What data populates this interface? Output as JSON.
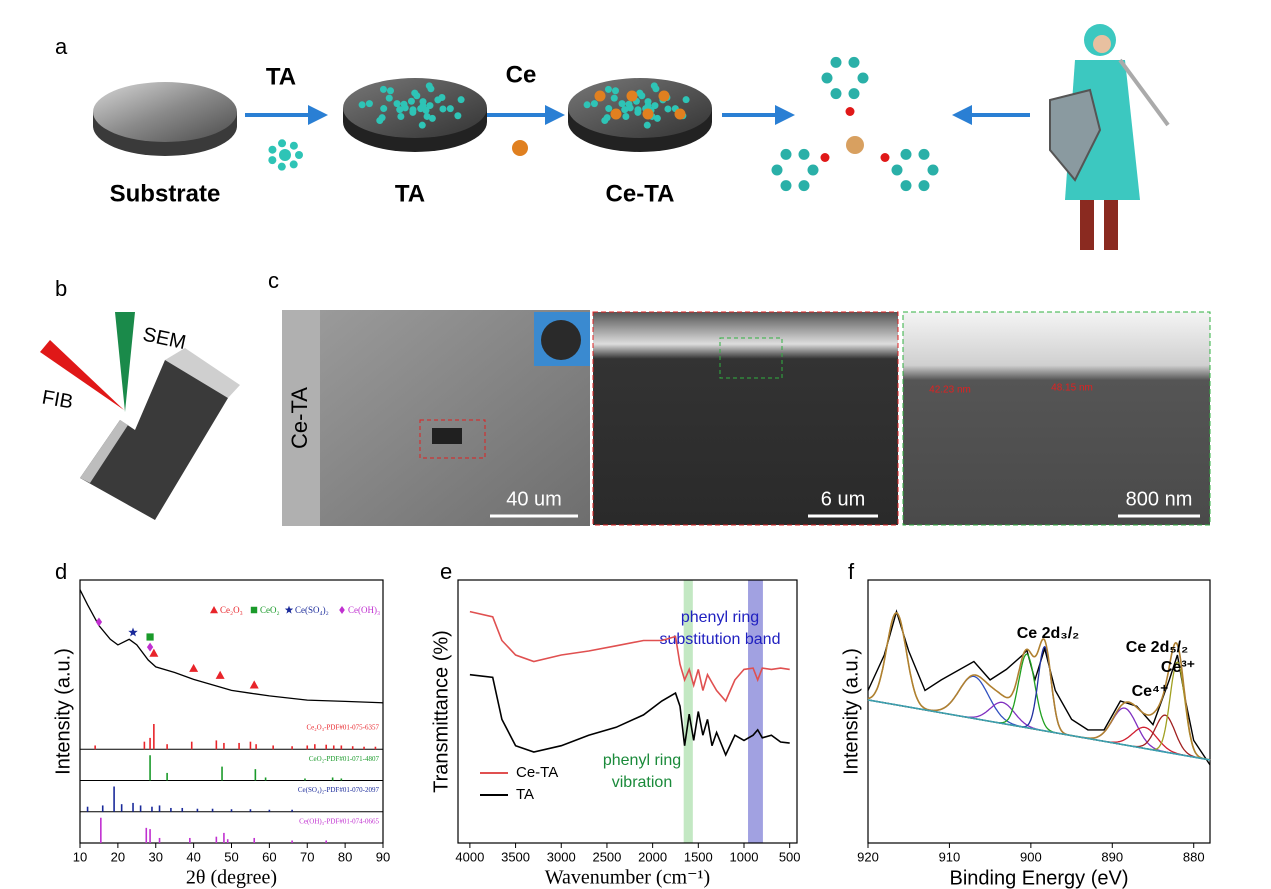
{
  "panel_labels": [
    "a",
    "b",
    "c",
    "d",
    "e",
    "f"
  ],
  "scheme": {
    "arrow_labels": [
      "TA",
      "Ce"
    ],
    "stage_labels": [
      "Substrate",
      "TA",
      "Ce-TA"
    ]
  },
  "fib_sketch": {
    "beam_labels": [
      "SEM",
      "FIB"
    ]
  },
  "sem_images": {
    "sample_label": "Ce-TA",
    "scale_bars": [
      "40 um",
      "6 um",
      "800 nm"
    ],
    "thickness_labels": [
      "42.23 nm",
      "48.15 nm"
    ]
  },
  "chart_data": [
    {
      "type": "xrd",
      "xlabel": "2θ (degree)",
      "ylabel": "Intensity (a.u.)",
      "xlim": [
        10,
        90
      ],
      "xticks": [
        10,
        20,
        30,
        40,
        50,
        60,
        70,
        80,
        90
      ],
      "ylim": [
        0,
        100
      ],
      "x": [
        10,
        12,
        15,
        18,
        20,
        23,
        25,
        28,
        30,
        35,
        40,
        45,
        50,
        55,
        60,
        65,
        70,
        80,
        90
      ],
      "values": [
        93,
        82,
        67,
        57,
        53,
        57,
        53,
        42,
        37,
        33,
        28,
        24,
        20,
        18,
        16,
        14.5,
        13,
        12,
        11
      ],
      "color": "#000000",
      "phases": [
        {
          "name": "Ce₂O₃",
          "color": "#e8242a",
          "symbol": "triangle",
          "points_x": [
            29.5,
            40,
            47,
            56
          ],
          "points_y": [
            47,
            36,
            31,
            24
          ],
          "reference": "Ce₂O₃-PDF#01-075-6357",
          "sticks_x": [
            14,
            27,
            28.5,
            29.5,
            33,
            39.5,
            46,
            48,
            52,
            55,
            56.5,
            61,
            66,
            70,
            72,
            75,
            77,
            79,
            82,
            85,
            88
          ],
          "sticks_h": [
            15,
            30,
            45,
            100,
            20,
            30,
            35,
            25,
            25,
            30,
            20,
            15,
            12,
            15,
            20,
            18,
            15,
            15,
            12,
            10,
            10
          ]
        },
        {
          "name": "CeO₂",
          "color": "#1a9a2a",
          "symbol": "square",
          "points_x": [
            28.5
          ],
          "points_y": [
            58.7
          ],
          "reference": "CeO₂-PDF#01-071-4807",
          "sticks_x": [
            28.5,
            33,
            47.5,
            56.3,
            59,
            69.4,
            76.7,
            79
          ],
          "sticks_h": [
            100,
            30,
            55,
            45,
            12,
            8,
            12,
            8
          ]
        },
        {
          "name": "Ce(SO₄)₂",
          "color": "#1a2a9a",
          "symbol": "star",
          "points_x": [
            24
          ],
          "points_y": [
            62
          ],
          "reference": "Ce(SO₄)₂-PDF#01-070-2097",
          "sticks_x": [
            12,
            16,
            19,
            21,
            24,
            26,
            29,
            31,
            34,
            37,
            41,
            45,
            50,
            55,
            60,
            66
          ],
          "sticks_h": [
            20,
            25,
            100,
            30,
            35,
            25,
            20,
            25,
            15,
            15,
            12,
            12,
            10,
            10,
            8,
            8
          ]
        },
        {
          "name": "Ce(OH)₃",
          "color": "#c030d0",
          "symbol": "diamond",
          "points_x": [
            15,
            28.5
          ],
          "points_y": [
            69.6,
            51.4
          ],
          "reference": "Ce(OH)₃-PDF#01-074-0665",
          "sticks_x": [
            15.5,
            27.5,
            28.5,
            31,
            39,
            46,
            48,
            49,
            56,
            66,
            75
          ],
          "sticks_h": [
            100,
            60,
            55,
            20,
            20,
            25,
            40,
            15,
            20,
            10,
            10
          ]
        }
      ]
    },
    {
      "type": "line",
      "xlabel": "Wavenumber (cm⁻¹)",
      "ylabel": "Transmittance (%)",
      "xlim": [
        4130,
        420
      ],
      "xticks": [
        4000,
        3500,
        3000,
        2500,
        2000,
        1500,
        1000,
        500
      ],
      "ylim": [
        0,
        100
      ],
      "x": [
        4000,
        3750,
        3650,
        3500,
        3300,
        3000,
        2700,
        2400,
        2100,
        1900,
        1750,
        1700,
        1650,
        1600,
        1550,
        1500,
        1450,
        1400,
        1350,
        1300,
        1200,
        1100,
        1000,
        900,
        850,
        800,
        700,
        600,
        500
      ],
      "series": [
        {
          "name": "Ce-TA",
          "color": "#e05050",
          "values": [
            88,
            86,
            77,
            71.5,
            69,
            71.5,
            73,
            75,
            77,
            77,
            78.5,
            68,
            62,
            66,
            60,
            66,
            58,
            64,
            61,
            58,
            54,
            62,
            66,
            66.5,
            62,
            66.5,
            66,
            66.5,
            66
          ]
        },
        {
          "name": "TA",
          "color": "#000000",
          "values": [
            64,
            63,
            47,
            37,
            34.6,
            37,
            41,
            44,
            48.7,
            54,
            57,
            52,
            37,
            49,
            39,
            50,
            41,
            47,
            37,
            42,
            33.5,
            41,
            39,
            41,
            43,
            40,
            41,
            38.4,
            38
          ]
        }
      ],
      "bands": [
        {
          "text": [
            "phenyl ring",
            "vibration"
          ],
          "color": "#b8e4b8",
          "text_color": "#1a8a3a",
          "range": [
            1660,
            1560
          ]
        },
        {
          "text": [
            "phenyl ring",
            "substitution band"
          ],
          "color": "#9090dc",
          "text_color": "#2020c0",
          "range": [
            956,
            793
          ]
        }
      ]
    },
    {
      "type": "xps",
      "xlabel": "Binding Energy (eV)",
      "ylabel": "Intensity (a.u.)",
      "xlim": [
        920,
        878
      ],
      "xticks": [
        920,
        910,
        900,
        890,
        880
      ],
      "ylim": [
        0,
        100
      ],
      "x": [
        920,
        918,
        916.5,
        915,
        913,
        911,
        907,
        905,
        903,
        901,
        900.5,
        899.5,
        898.3,
        897,
        895,
        893,
        891,
        889,
        887,
        885,
        883,
        882,
        881,
        880,
        878
      ],
      "values": [
        58,
        71.5,
        88,
        73,
        58,
        62,
        69,
        62,
        66,
        71.5,
        73.4,
        62,
        74,
        58,
        47,
        43,
        43,
        54,
        52,
        45,
        62,
        71.5,
        54,
        39,
        29.7
      ],
      "color": "#000000",
      "envelope_color": "#b08030",
      "baseline": {
        "x": [
          920,
          878
        ],
        "values": [
          54.4,
          31.6
        ],
        "color": "#3aa0b0"
      },
      "peaks": [
        {
          "center": 916.5,
          "height": 35,
          "width": 1.2,
          "color": "#a0a020"
        },
        {
          "center": 907,
          "height": 16,
          "width": 1.8,
          "color": "#3050c0"
        },
        {
          "center": 903.5,
          "height": 8,
          "width": 1.5,
          "color": "#8030c0"
        },
        {
          "center": 900.5,
          "height": 28,
          "width": 1,
          "color": "#20a020"
        },
        {
          "center": 898.3,
          "height": 32,
          "width": 0.8,
          "color": "#2030a0"
        },
        {
          "center": 888.5,
          "height": 14,
          "width": 1.5,
          "color": "#8030c0"
        },
        {
          "center": 886,
          "height": 8,
          "width": 1.5,
          "color": "#d02030"
        },
        {
          "center": 883.5,
          "height": 14,
          "width": 1.2,
          "color": "#a02020"
        },
        {
          "center": 882,
          "height": 35,
          "width": 0.9,
          "color": "#a0a020"
        }
      ],
      "annotations": [
        "Ce 2d₃/₂",
        "Ce 2d₅/₂",
        "Ce³⁺",
        "Ce⁴⁺"
      ]
    }
  ]
}
